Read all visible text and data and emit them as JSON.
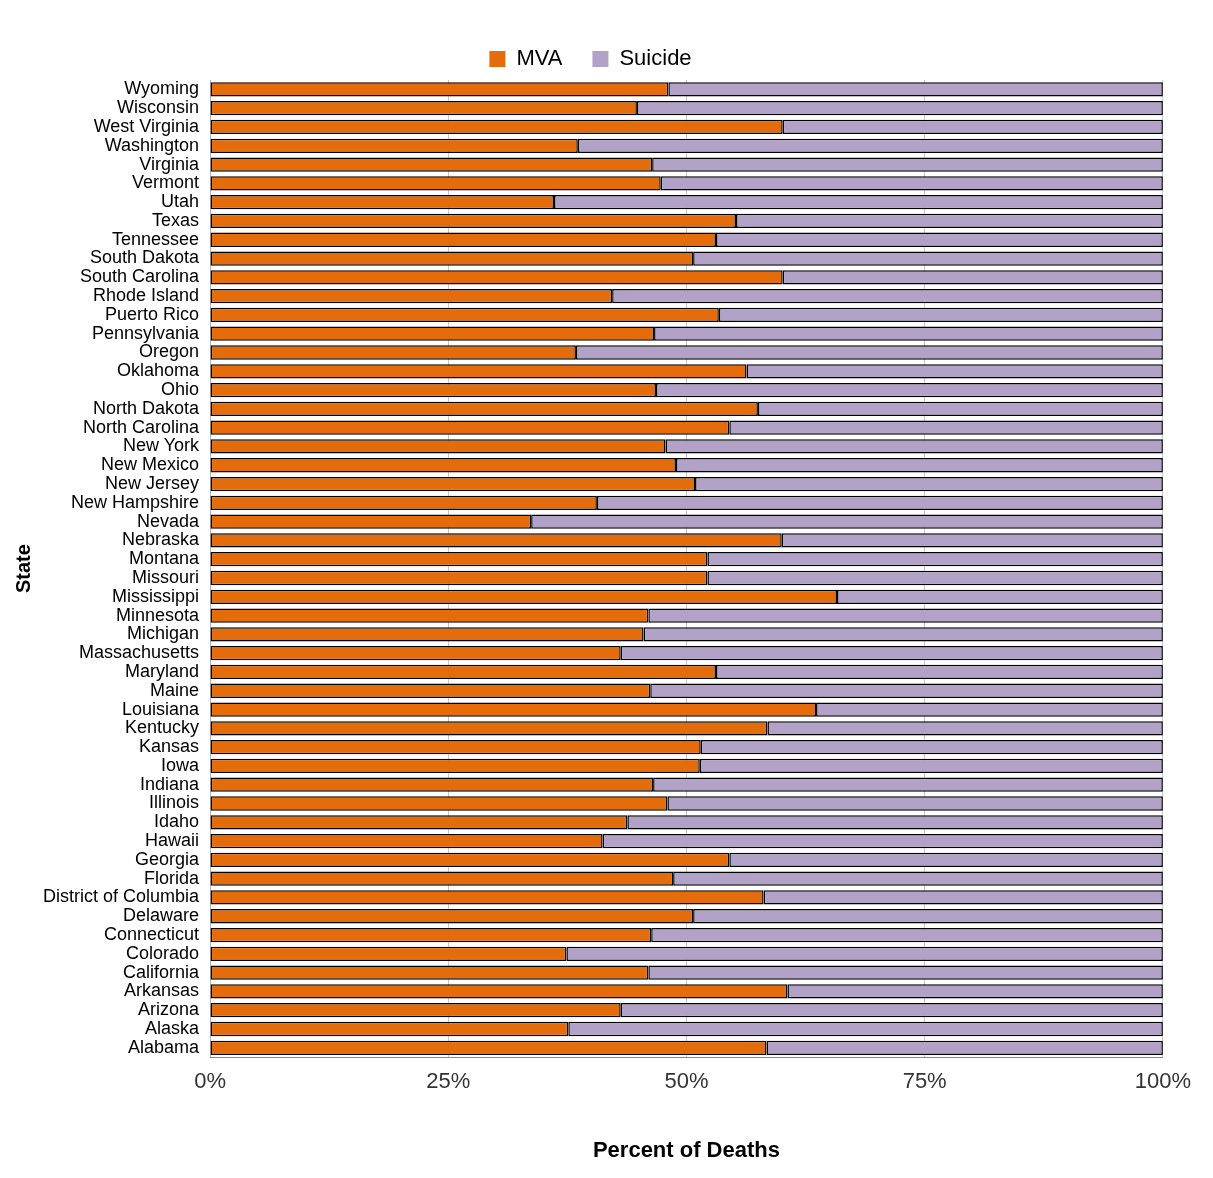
{
  "chart_data": {
    "type": "bar",
    "orientation": "horizontal",
    "stacked": true,
    "xlabel": "Percent of Deaths",
    "ylabel": "State",
    "categories": [
      "Wyoming",
      "Wisconsin",
      "West Virginia",
      "Washington",
      "Virginia",
      "Vermont",
      "Utah",
      "Texas",
      "Tennessee",
      "South Dakota",
      "South Carolina",
      "Rhode Island",
      "Puerto Rico",
      "Pennsylvania",
      "Oregon",
      "Oklahoma",
      "Ohio",
      "North Dakota",
      "North Carolina",
      "New York",
      "New Mexico",
      "New Jersey",
      "New Hampshire",
      "Nevada",
      "Nebraska",
      "Montana",
      "Missouri",
      "Mississippi",
      "Minnesota",
      "Michigan",
      "Massachusetts",
      "Maryland",
      "Maine",
      "Louisiana",
      "Kentucky",
      "Kansas",
      "Iowa",
      "Indiana",
      "Illinois",
      "Idaho",
      "Hawaii",
      "Georgia",
      "Florida",
      "District of Columbia",
      "Delaware",
      "Connecticut",
      "Colorado",
      "California",
      "Arkansas",
      "Arizona",
      "Alaska",
      "Alabama"
    ],
    "series": [
      {
        "name": "MVA",
        "color": "#e46c0a",
        "values": [
          48.1,
          44.8,
          60.1,
          38.6,
          46.4,
          47.3,
          36.1,
          55.2,
          53.1,
          50.7,
          60.1,
          42.2,
          53.4,
          46.6,
          38.4,
          56.3,
          46.8,
          57.5,
          54.5,
          47.8,
          48.9,
          50.9,
          40.6,
          33.7,
          60.0,
          52.2,
          52.2,
          65.8,
          46.0,
          45.5,
          43.1,
          53.1,
          46.2,
          63.6,
          58.5,
          51.5,
          51.4,
          46.5,
          48.0,
          43.8,
          41.2,
          54.5,
          48.6,
          58.1,
          50.7,
          46.3,
          37.4,
          46.0,
          60.6,
          43.1,
          37.6,
          58.4
        ]
      },
      {
        "name": "Suicide",
        "color": "#b3a2c7",
        "values": [
          51.9,
          55.2,
          39.9,
          61.4,
          53.6,
          52.7,
          63.9,
          44.8,
          46.9,
          49.3,
          39.9,
          57.8,
          46.6,
          53.4,
          61.6,
          43.7,
          53.2,
          42.5,
          45.5,
          52.2,
          51.1,
          49.1,
          59.4,
          66.3,
          40.0,
          47.8,
          47.8,
          34.2,
          54.0,
          54.5,
          56.9,
          46.9,
          53.8,
          36.4,
          41.5,
          48.5,
          48.6,
          53.5,
          52.0,
          56.2,
          58.8,
          45.5,
          51.4,
          41.9,
          49.3,
          53.7,
          62.6,
          54.0,
          39.4,
          56.9,
          62.4,
          41.6
        ]
      }
    ],
    "xlim": [
      0,
      100
    ],
    "xticks": [
      {
        "value": 0,
        "label": "0%"
      },
      {
        "value": 25,
        "label": "25%"
      },
      {
        "value": 50,
        "label": "50%"
      },
      {
        "value": 75,
        "label": "75%"
      },
      {
        "value": 100,
        "label": "100%"
      }
    ],
    "grid": "x",
    "legend": "top"
  }
}
